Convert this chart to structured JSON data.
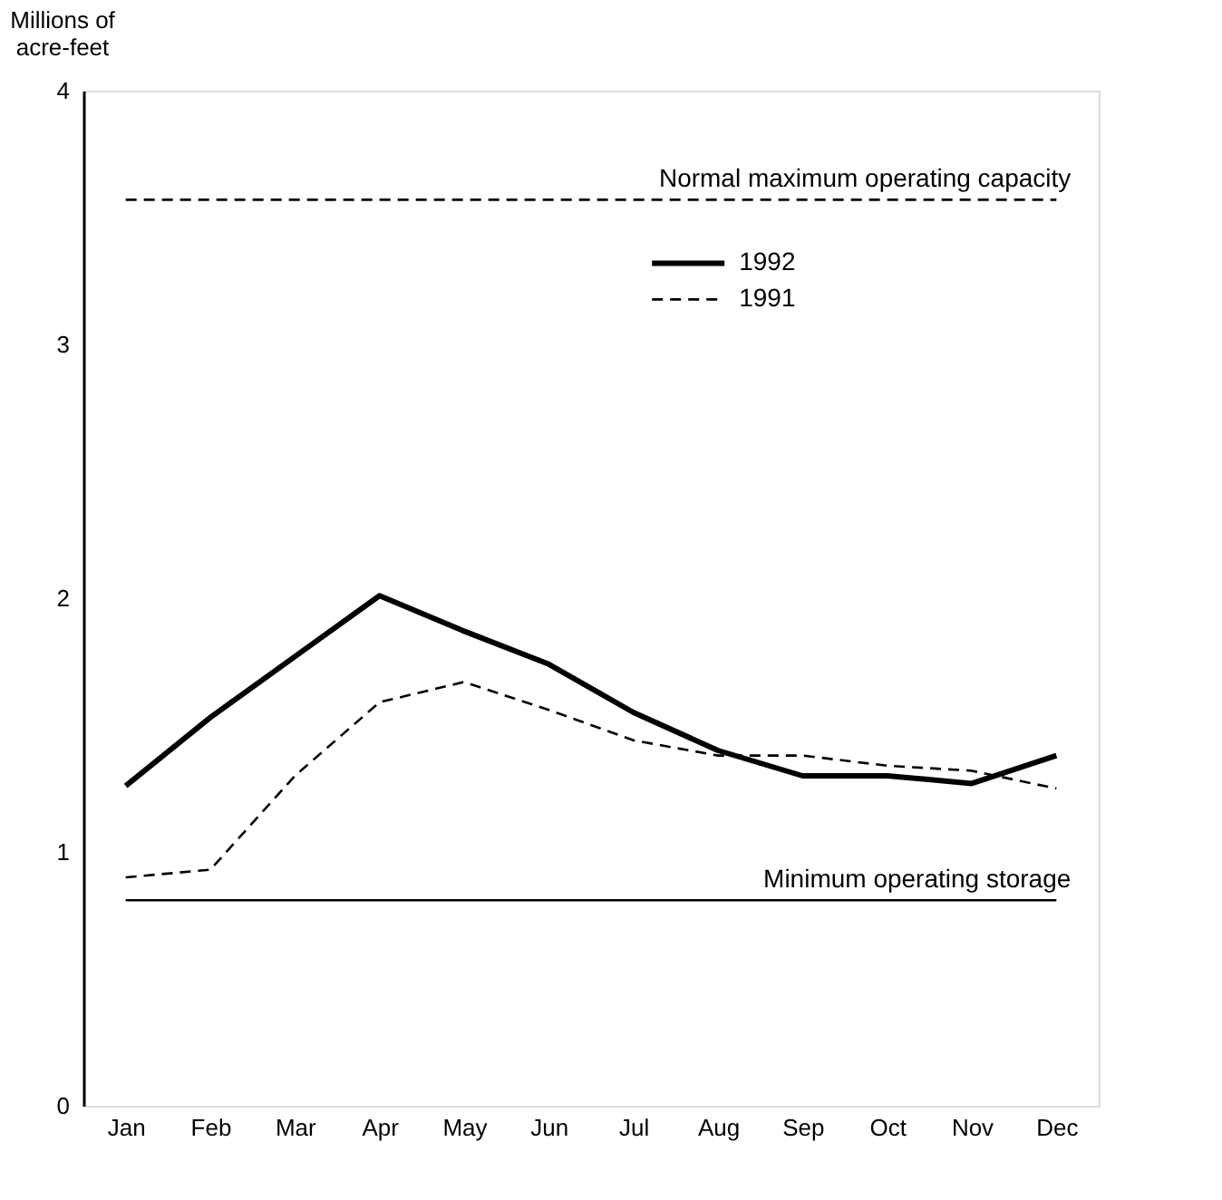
{
  "chart_data": {
    "type": "line",
    "ylabel": "Millions of\nacre-feet",
    "categories": [
      "Jan",
      "Feb",
      "Mar",
      "Apr",
      "May",
      "Jun",
      "Jul",
      "Aug",
      "Sep",
      "Oct",
      "Nov",
      "Dec"
    ],
    "series": [
      {
        "name": "1992",
        "color": "#000000",
        "line_style": "solid",
        "values": [
          1.26,
          1.53,
          1.77,
          2.01,
          1.87,
          1.74,
          1.55,
          1.4,
          1.3,
          1.3,
          1.27,
          1.38
        ]
      },
      {
        "name": "1991",
        "color": "#000000",
        "line_style": "dashed",
        "values": [
          0.9,
          0.93,
          1.3,
          1.59,
          1.67,
          1.56,
          1.44,
          1.38,
          1.38,
          1.34,
          1.32,
          1.25
        ]
      }
    ],
    "ylim": [
      0,
      4
    ],
    "yticks": [
      0,
      1,
      2,
      3,
      4
    ],
    "ref_lines": [
      {
        "axis": "y",
        "value": 3.57,
        "label": "Normal maximum operating capacity",
        "color": "#000000",
        "line_style": "dashed"
      },
      {
        "axis": "y",
        "value": 0.81,
        "label": "Minimum operating storage",
        "color": "#000000",
        "line_style": "solid"
      }
    ],
    "grid": false,
    "legend": "top right",
    "marker": "none"
  }
}
